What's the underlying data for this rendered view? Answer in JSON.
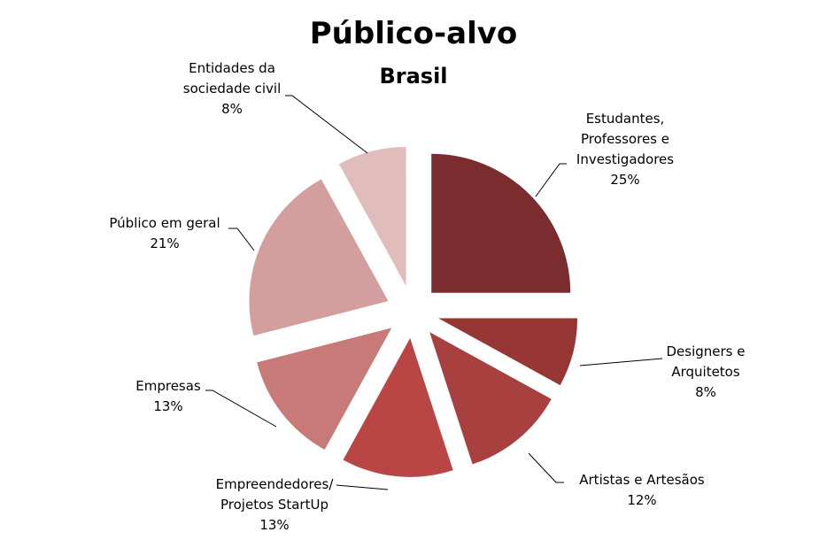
{
  "chart_data": {
    "type": "pie",
    "title": "Público-alvo",
    "subtitle": "Brasil",
    "categories": [
      "Estudantes,\nProfessores e\nInvestigadores",
      "Designers e\nArquitetos",
      "Artistas e Artesãos",
      "Empreendedores/\nProjetos StartUp",
      "Empresas",
      "Público em geral",
      "Entidades da\nsociedade civil"
    ],
    "values": [
      25,
      8,
      12,
      13,
      13,
      21,
      8
    ],
    "value_labels": [
      "25%",
      "8%",
      "12%",
      "13%",
      "13%",
      "21%",
      "8%"
    ],
    "colors": [
      "#7b2c2e",
      "#963735",
      "#a84040",
      "#b94545",
      "#c77a78",
      "#d39e9e",
      "#e0bcbb"
    ]
  }
}
